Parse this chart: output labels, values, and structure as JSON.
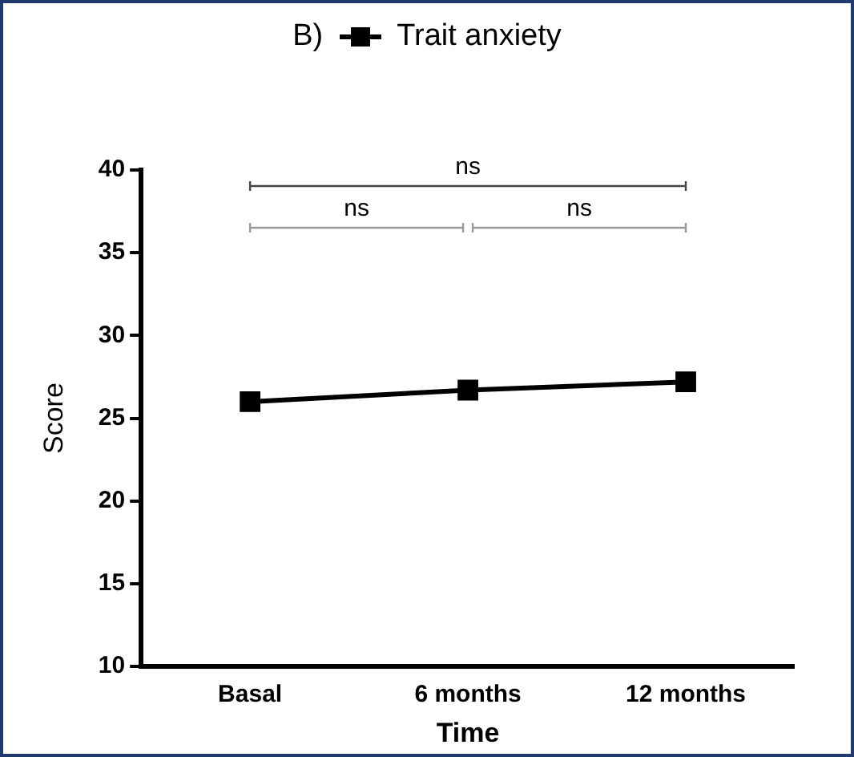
{
  "chart_data": {
    "type": "line",
    "title": "B)",
    "xlabel": "Time",
    "ylabel": "Score",
    "categories": [
      "Basal",
      "6 months",
      "12 months"
    ],
    "series": [
      {
        "name": "Trait anxiety",
        "color": "#000000",
        "values": [
          26.0,
          26.7,
          27.2
        ]
      }
    ],
    "ylim": [
      10,
      40
    ],
    "yticks": [
      10,
      15,
      20,
      25,
      30,
      35,
      40
    ],
    "grid": false,
    "legend": "top",
    "marker": "square",
    "line_style": "solid",
    "annotations": [
      "ns",
      "ns",
      "ns"
    ]
  }
}
